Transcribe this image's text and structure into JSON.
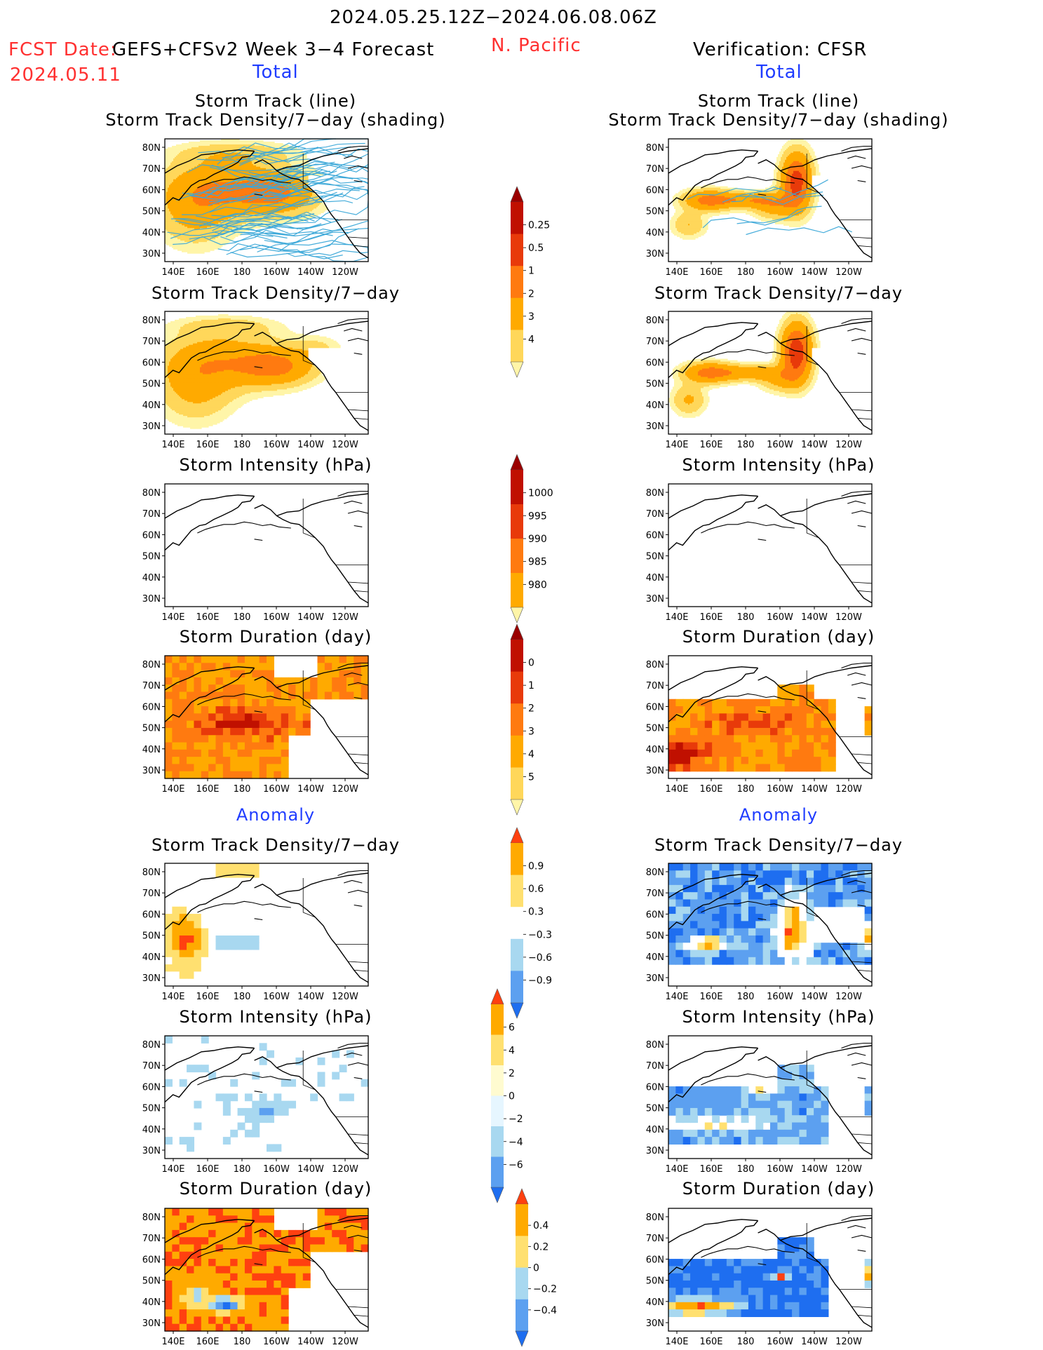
{
  "header": {
    "period": "2024.05.25.12Z−2024.06.08.06Z",
    "fcst_date_label": "FCST Date:",
    "fcst_date": "2024.05.11",
    "model": "GEFS+CFSv2 Week 3−4 Forecast",
    "region": "N. Pacific",
    "verification": "Verification: CFSR",
    "left_column_label": "Total",
    "right_column_label": "Total",
    "anomaly_left_label": "Anomaly",
    "anomaly_right_label": "Anomaly"
  },
  "panels": {
    "track_line_title": "Storm Track (line)",
    "track_shading_title": "Storm Track Density/7−day (shading)",
    "density_title": "Storm Track Density/7−day",
    "intensity_title": "Storm Intensity (hPa)",
    "duration_title": "Storm Duration (day)"
  },
  "colors": {
    "total_scale": [
      "#fff5a8",
      "#ffd75a",
      "#ffaa00",
      "#ff7a10",
      "#e83a0a",
      "#c01000",
      "#9a0000"
    ],
    "anomaly_scale": [
      "#1e6ef0",
      "#5ca0f0",
      "#a8d8f0",
      "#ffffff",
      "#ffe070",
      "#ffaa00",
      "#ff4010"
    ],
    "track_line": "#3ba8d8"
  },
  "chart_data": [
    {
      "type": "heatmap",
      "title": "Storm Track Density/7−day (shading)",
      "subtitle": "Storm Track (line)",
      "source": "GEFS+CFSv2 Week 3−4 Forecast",
      "x_ticks": [
        "140E",
        "160E",
        "180",
        "160W",
        "140W",
        "120W"
      ],
      "y_ticks": [
        "30N",
        "40N",
        "50N",
        "60N",
        "70N",
        "80N"
      ],
      "xlim": [
        140,
        250
      ],
      "ylim": [
        25,
        85
      ]
    },
    {
      "type": "heatmap",
      "title": "Storm Track Density/7−day (shading)",
      "subtitle": "Storm Track (line)",
      "source": "CFSR",
      "x_ticks": [
        "140E",
        "160E",
        "180",
        "160W",
        "140W",
        "120W"
      ],
      "y_ticks": [
        "30N",
        "40N",
        "50N",
        "60N",
        "70N",
        "80N"
      ]
    },
    {
      "type": "heatmap",
      "title": "Storm Track Density/7−day",
      "source": "GEFS+CFSv2 Week 3−4 Forecast"
    },
    {
      "type": "heatmap",
      "title": "Storm Track Density/7−day",
      "source": "CFSR"
    },
    {
      "type": "heatmap",
      "title": "Storm Intensity (hPa)",
      "source": "GEFS+CFSv2 Week 3−4 Forecast"
    },
    {
      "type": "heatmap",
      "title": "Storm Intensity (hPa)",
      "source": "CFSR"
    },
    {
      "type": "heatmap",
      "title": "Storm Duration (day)",
      "source": "GEFS+CFSv2 Week 3−4 Forecast"
    },
    {
      "type": "heatmap",
      "title": "Storm Duration (day)",
      "source": "CFSR"
    },
    {
      "type": "heatmap",
      "title": "Storm Track Density/7−day",
      "anomaly": true,
      "source": "GEFS+CFSv2 Week 3−4 Forecast"
    },
    {
      "type": "heatmap",
      "title": "Storm Track Density/7−day",
      "anomaly": true,
      "source": "CFSR"
    },
    {
      "type": "heatmap",
      "title": "Storm Intensity (hPa)",
      "anomaly": true,
      "source": "GEFS+CFSv2 Week 3−4 Forecast"
    },
    {
      "type": "heatmap",
      "title": "Storm Intensity (hPa)",
      "anomaly": true,
      "source": "CFSR"
    },
    {
      "type": "heatmap",
      "title": "Storm Duration (day)",
      "anomaly": true,
      "source": "GEFS+CFSv2 Week 3−4 Forecast"
    },
    {
      "type": "heatmap",
      "title": "Storm Duration (day)",
      "anomaly": true,
      "source": "CFSR"
    }
  ],
  "axes": {
    "x_ticks": [
      "140E",
      "160E",
      "180",
      "160W",
      "140W",
      "120W"
    ],
    "y_ticks": [
      "30N",
      "40N",
      "50N",
      "60N",
      "70N",
      "80N"
    ]
  },
  "colorbars": [
    {
      "name": "track-density",
      "ticks": [
        "0.25",
        "0.5",
        "1",
        "2",
        "3",
        "4"
      ],
      "colors": [
        "#fff5a8",
        "#ffd75a",
        "#ffaa00",
        "#ff7a10",
        "#e83a0a",
        "#c01000",
        "#9a0000"
      ]
    },
    {
      "name": "intensity",
      "ticks": [
        "1000",
        "995",
        "990",
        "985",
        "980"
      ],
      "colors": [
        "#fff5a8",
        "#ffaa00",
        "#ff7a10",
        "#e83a0a",
        "#c01000",
        "#9a0000"
      ]
    },
    {
      "name": "duration",
      "ticks": [
        "0",
        "1",
        "2",
        "3",
        "4",
        "5"
      ],
      "colors": [
        "#fff5a8",
        "#ffd75a",
        "#ffaa00",
        "#ff7a10",
        "#e83a0a",
        "#c01000",
        "#9a0000"
      ]
    },
    {
      "name": "density-anomaly",
      "ticks": [
        "0.9",
        "0.6",
        "0.3",
        "−0.3",
        "−0.6",
        "−0.9"
      ],
      "colors": [
        "#ff4010",
        "#ffaa00",
        "#ffe070",
        "#ffffff",
        "#a8d8f0",
        "#5ca0f0",
        "#1e6ef0"
      ]
    },
    {
      "name": "intensity-anomaly",
      "ticks": [
        "6",
        "4",
        "2",
        "0",
        "−2",
        "−4",
        "−6"
      ],
      "colors": [
        "#ff4010",
        "#ffaa00",
        "#ffe070",
        "#fffbd0",
        "#e6f6ff",
        "#a8d8f0",
        "#5ca0f0",
        "#1e6ef0"
      ]
    },
    {
      "name": "duration-anomaly",
      "ticks": [
        "0.4",
        "0.2",
        "0",
        "−0.2",
        "−0.4"
      ],
      "colors": [
        "#ff4010",
        "#ffaa00",
        "#ffe070",
        "#a8d8f0",
        "#5ca0f0",
        "#1e6ef0"
      ]
    }
  ]
}
